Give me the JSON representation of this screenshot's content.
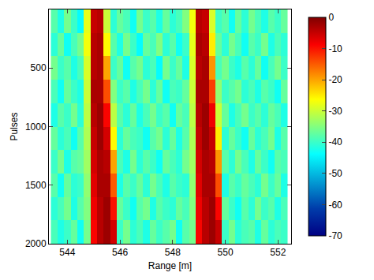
{
  "chart_data": {
    "type": "heatmap",
    "x_label": "Range [m]",
    "y_label": "Pulses",
    "color": "Jet",
    "x": [
      543.5,
      543.75,
      544,
      544.25,
      544.5,
      544.75,
      545,
      545.25,
      545.5,
      545.75,
      546,
      546.25,
      546.5,
      546.75,
      547,
      547.25,
      547.5,
      547.75,
      548,
      548.25,
      548.5,
      548.75,
      549,
      549.25,
      549.5,
      549.75,
      550,
      550.25,
      550.5,
      550.75,
      551,
      551.25,
      551.5,
      551.75,
      552,
      552.25
    ],
    "y": [
      100,
      300,
      500,
      700,
      900,
      1100,
      1300,
      1500,
      1700,
      1900
    ],
    "z": [
      [
        -38,
        -42,
        -36,
        -40,
        -44,
        -28,
        -5,
        -4,
        -30,
        -41,
        -37,
        -39,
        -43,
        -36,
        -40,
        -38,
        -42,
        -37,
        -41,
        -39,
        -35,
        -27,
        -4,
        -5,
        -29,
        -40,
        -38,
        -43,
        -37,
        -41,
        -36,
        -39,
        -42,
        -38,
        -40,
        -37
      ],
      [
        -41,
        -37,
        -43,
        -39,
        -36,
        -27,
        -4,
        -3,
        -26,
        -38,
        -42,
        -36,
        -40,
        -44,
        -37,
        -39,
        -35,
        -41,
        -38,
        -43,
        -40,
        -28,
        -3,
        -4,
        -25,
        -37,
        -41,
        -36,
        -39,
        -43,
        -38,
        -40,
        -36,
        -42,
        -39,
        -41
      ],
      [
        -36,
        -40,
        -38,
        -42,
        -39,
        -29,
        -4,
        -3,
        -20,
        -40,
        -37,
        -43,
        -38,
        -36,
        -41,
        -39,
        -44,
        -36,
        -40,
        -37,
        -42,
        -29,
        -4,
        -3,
        -19,
        -39,
        -36,
        -40,
        -42,
        -38,
        -41,
        -37,
        -43,
        -39,
        -36,
        -40
      ],
      [
        -39,
        -43,
        -37,
        -40,
        -42,
        -30,
        -3,
        -3,
        -14,
        -35,
        -40,
        -38,
        -42,
        -39,
        -36,
        -41,
        -37,
        -43,
        -39,
        -40,
        -37,
        -30,
        -3,
        -3,
        -13,
        -34,
        -40,
        -38,
        -36,
        -41,
        -39,
        -42,
        -38,
        -40,
        -43,
        -37
      ],
      [
        -42,
        -38,
        -40,
        -36,
        -41,
        -31,
        -4,
        -2,
        -9,
        -31,
        -38,
        -41,
        -37,
        -42,
        -39,
        -36,
        -40,
        -38,
        -43,
        -37,
        -39,
        -31,
        -4,
        -2,
        -8,
        -30,
        -37,
        -42,
        -39,
        -36,
        -40,
        -38,
        -41,
        -37,
        -39,
        -42
      ],
      [
        -37,
        -41,
        -39,
        -43,
        -38,
        -32,
        -5,
        -2,
        -6,
        -26,
        -41,
        -37,
        -39,
        -40,
        -43,
        -38,
        -36,
        -41,
        -37,
        -42,
        -38,
        -32,
        -5,
        -2,
        -5,
        -25,
        -41,
        -37,
        -40,
        -43,
        -37,
        -41,
        -39,
        -36,
        -42,
        -38
      ],
      [
        -40,
        -36,
        -42,
        -38,
        -37,
        -33,
        -6,
        -3,
        -4,
        -20,
        -39,
        -42,
        -36,
        -41,
        -38,
        -40,
        -43,
        -37,
        -39,
        -41,
        -36,
        -33,
        -6,
        -3,
        -4,
        -19,
        -38,
        -41,
        -36,
        -39,
        -42,
        -37,
        -40,
        -43,
        -38,
        -39
      ],
      [
        -38,
        -43,
        -37,
        -41,
        -40,
        -34,
        -7,
        -3,
        -3,
        -15,
        -42,
        -38,
        -40,
        -37,
        -41,
        -36,
        -39,
        -42,
        -38,
        -40,
        -41,
        -34,
        -7,
        -3,
        -3,
        -14,
        -42,
        -38,
        -40,
        -37,
        -39,
        -41,
        -36,
        -40,
        -37,
        -42
      ],
      [
        -41,
        -39,
        -36,
        -42,
        -38,
        -35,
        -8,
        -4,
        -2,
        -10,
        -37,
        -40,
        -43,
        -38,
        -36,
        -42,
        -38,
        -40,
        -41,
        -37,
        -39,
        -35,
        -8,
        -4,
        -2,
        -9,
        -37,
        -40,
        -43,
        -38,
        -41,
        -36,
        -40,
        -38,
        -42,
        -39
      ],
      [
        -39,
        -42,
        -40,
        -37,
        -43,
        -36,
        -9,
        -4,
        -2,
        -6,
        -40,
        -36,
        -41,
        -39,
        -42,
        -37,
        -40,
        -38,
        -36,
        -43,
        -38,
        -36,
        -9,
        -4,
        -2,
        -5,
        -40,
        -36,
        -41,
        -39,
        -38,
        -42,
        -37,
        -41,
        -39,
        -40
      ]
    ],
    "xlim": [
      543.3,
      552.5
    ],
    "xticks": [
      544,
      546,
      548,
      550,
      552
    ],
    "ylim": [
      2000,
      0
    ],
    "yticks": [
      500,
      1000,
      1500,
      2000
    ],
    "zlim": [
      -70,
      0
    ],
    "zticks": [
      -70,
      -60,
      -50,
      -40,
      -30,
      -20,
      -10,
      0
    ]
  }
}
